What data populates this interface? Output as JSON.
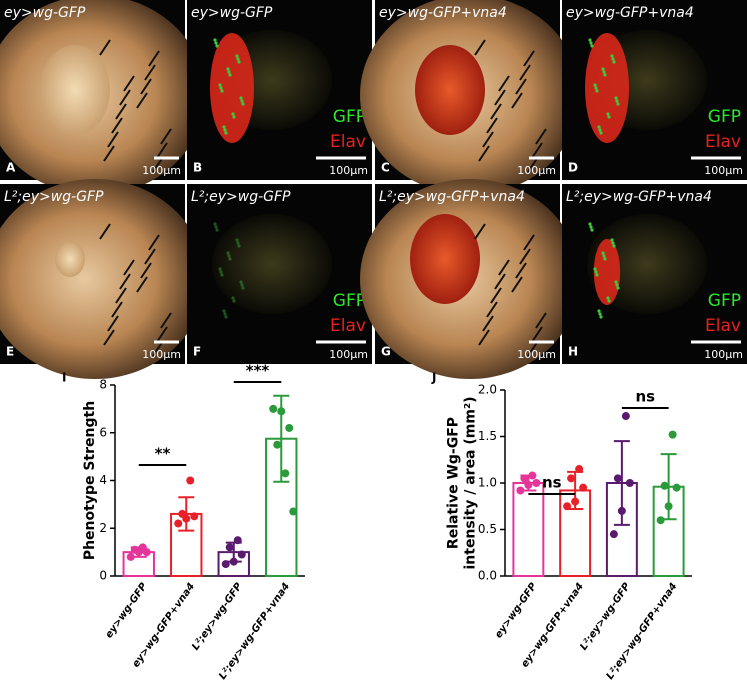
{
  "panels": [
    {
      "title": "ey>wg-GFP",
      "letter": "A",
      "scale": "100µm"
    },
    {
      "title": "ey>wg-GFP",
      "letter": "B",
      "scale": "100µm",
      "gfp": "GFP",
      "elav": "Elav"
    },
    {
      "title": "ey>wg-GFP+vna4",
      "letter": "C",
      "scale": "100µm"
    },
    {
      "title": "ey>wg-GFP+vna4",
      "letter": "D",
      "scale": "100µm",
      "gfp": "GFP",
      "elav": "Elav"
    },
    {
      "title": "L²;ey>wg-GFP",
      "letter": "E",
      "scale": "100µm"
    },
    {
      "title": "L²;ey>wg-GFP",
      "letter": "F",
      "scale": "100µm",
      "gfp": "GFP",
      "elav": "Elav"
    },
    {
      "title": "L²;ey>wg-GFP+vna4",
      "letter": "G",
      "scale": "100µm"
    },
    {
      "title": "L²;ey>wg-GFP+vna4",
      "letter": "H",
      "scale": "100µm",
      "gfp": "GFP",
      "elav": "Elav"
    }
  ],
  "chart_data": [
    {
      "type": "bar",
      "panel": "I",
      "ylabel": "Phenotype Strength",
      "categories": [
        "ey>wg-GFP",
        "ey>wg-GFP+vna4",
        "L²;ey>wg-GFP",
        "L²;ey>wg-GFP+vna4"
      ],
      "colors": [
        "#e5359b",
        "#e8202a",
        "#5a1a6e",
        "#2a9a3a"
      ],
      "values": [
        1.0,
        2.6,
        1.0,
        5.75
      ],
      "errors": [
        0.2,
        0.7,
        0.4,
        1.8
      ],
      "points": [
        [
          0.8,
          1.0,
          1.0,
          1.1,
          1.2
        ],
        [
          2.2,
          2.4,
          2.5,
          2.6,
          4.0
        ],
        [
          0.5,
          0.6,
          0.9,
          1.2,
          1.5
        ],
        [
          7.0,
          6.9,
          6.2,
          5.5,
          4.3,
          2.7
        ]
      ],
      "annotations": [
        "**",
        "***"
      ],
      "ylim": [
        0,
        8
      ],
      "yticks": [
        0,
        2,
        4,
        6,
        8
      ]
    },
    {
      "type": "bar",
      "panel": "J",
      "ylabel": [
        "Relative Wg-GFP",
        "intensity / area (mm²)"
      ],
      "categories": [
        "ey>wg-GFP",
        "ey>wg-GFP+vna4",
        "L²;ey>wg-GFP",
        "L²;ey>wg-GFP+vna4"
      ],
      "colors": [
        "#e5359b",
        "#e8202a",
        "#5a1a6e",
        "#2a9a3a"
      ],
      "values": [
        1.0,
        0.92,
        1.0,
        0.96
      ],
      "errors": [
        0.08,
        0.2,
        0.45,
        0.35
      ],
      "points": [
        [
          0.92,
          0.98,
          1.0,
          1.05,
          1.08
        ],
        [
          0.75,
          0.8,
          0.95,
          1.05,
          1.15
        ],
        [
          0.45,
          0.7,
          1.0,
          1.05,
          1.72
        ],
        [
          0.6,
          0.75,
          0.95,
          0.97,
          1.52
        ]
      ],
      "annotations": [
        "ns",
        "ns"
      ],
      "ylim": [
        0,
        2
      ],
      "yticks": [
        {
          "value": 0,
          "label": "0.0"
        },
        {
          "value": 0.5,
          "label": "0.5"
        },
        {
          "value": 1,
          "label": "1.0"
        },
        {
          "value": 1.5,
          "label": "1.5"
        },
        {
          "value": 2,
          "label": "2.0"
        }
      ]
    }
  ]
}
